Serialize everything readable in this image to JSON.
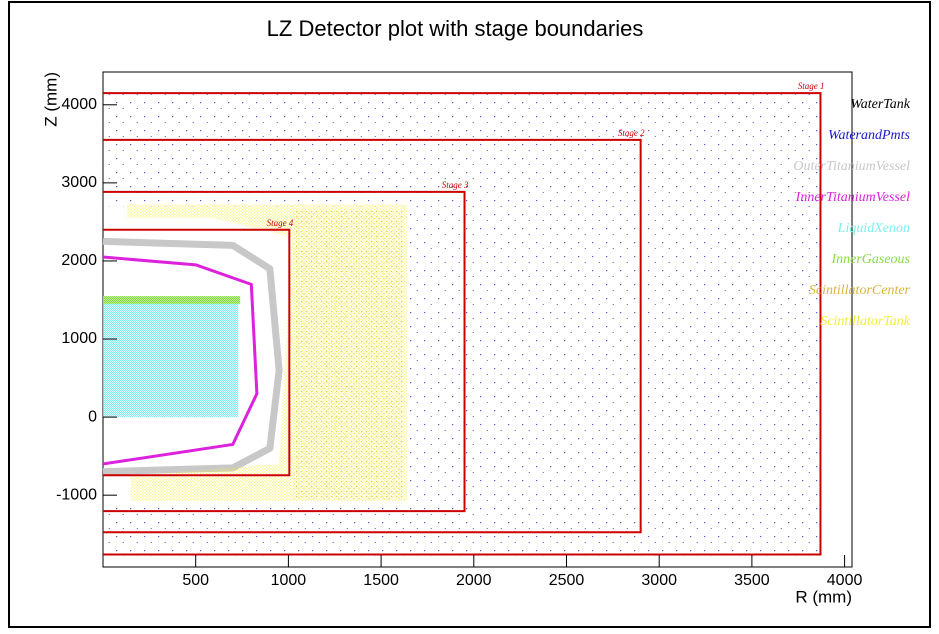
{
  "chart_data": {
    "type": "scatter",
    "title": "LZ Detector plot with stage boundaries",
    "x_label": "R (mm)",
    "y_label": "Z (mm)",
    "xlim": [
      0,
      4040
    ],
    "ylim": [
      -1920,
      4420
    ],
    "xticks": [
      500,
      1000,
      1500,
      2000,
      2500,
      3000,
      3500,
      4000
    ],
    "yticks": [
      -1000,
      0,
      1000,
      2000,
      3000,
      4000
    ],
    "boundary_color": "#cc0000",
    "stages": [
      {
        "name": "Stage 1",
        "r_max": 3870,
        "z_min": -1760,
        "z_max": 4150
      },
      {
        "name": "Stage 2",
        "r_max": 2900,
        "z_min": -1475,
        "z_max": 3550
      },
      {
        "name": "Stage 3",
        "r_max": 1950,
        "z_min": -1205,
        "z_max": 2885
      },
      {
        "name": "Stage 4",
        "r_max": 1005,
        "z_min": -745,
        "z_max": 2400
      }
    ],
    "series": [
      {
        "name": "WaterTank",
        "color": "#000000",
        "shape": "area",
        "x": [],
        "values": []
      },
      {
        "name": "WaterandPmts",
        "color": "#1a1acc",
        "shape": "area",
        "x": [
          0,
          3870,
          3870,
          0,
          0,
          1650,
          1650,
          0
        ],
        "values": [
          4150,
          4150,
          -1780,
          -1780,
          -1100,
          -1100,
          2700,
          2700
        ]
      },
      {
        "name": "OuterTitaniumVessel",
        "color": "#c8c8c8",
        "shape": "outline",
        "x": [
          0,
          700,
          900,
          950,
          900,
          700,
          0
        ],
        "values": [
          2250,
          2200,
          1900,
          600,
          -400,
          -650,
          -700
        ]
      },
      {
        "name": "InnerTitaniumVessel",
        "color": "#dd22dd",
        "shape": "outline",
        "x": [
          0,
          500,
          800,
          830,
          700,
          0
        ],
        "values": [
          2050,
          1950,
          1700,
          300,
          -350,
          -600
        ]
      },
      {
        "name": "LiquidXenon",
        "color": "#7feef0",
        "shape": "area",
        "x": [
          0,
          730,
          730,
          0
        ],
        "values": [
          1450,
          1450,
          0,
          0
        ]
      },
      {
        "name": "InnerGaseous",
        "color": "#88dd44",
        "shape": "area",
        "x": [
          0,
          740,
          740,
          0
        ],
        "values": [
          1550,
          1550,
          1450,
          1450
        ]
      },
      {
        "name": "ScintillatorCenter",
        "color": "#d9b53a",
        "shape": "area",
        "x": [
          1030,
          1620,
          1620,
          1030
        ],
        "values": [
          2650,
          2650,
          -1050,
          -1050
        ]
      },
      {
        "name": "ScintillatorTank",
        "color": "#f2ee3a",
        "shape": "area",
        "x": [
          130,
          1640,
          1640,
          150,
          150,
          950,
          1020,
          600,
          130
        ],
        "values": [
          2720,
          2720,
          -1080,
          -1080,
          -750,
          -600,
          2300,
          2550,
          2550
        ]
      }
    ]
  }
}
